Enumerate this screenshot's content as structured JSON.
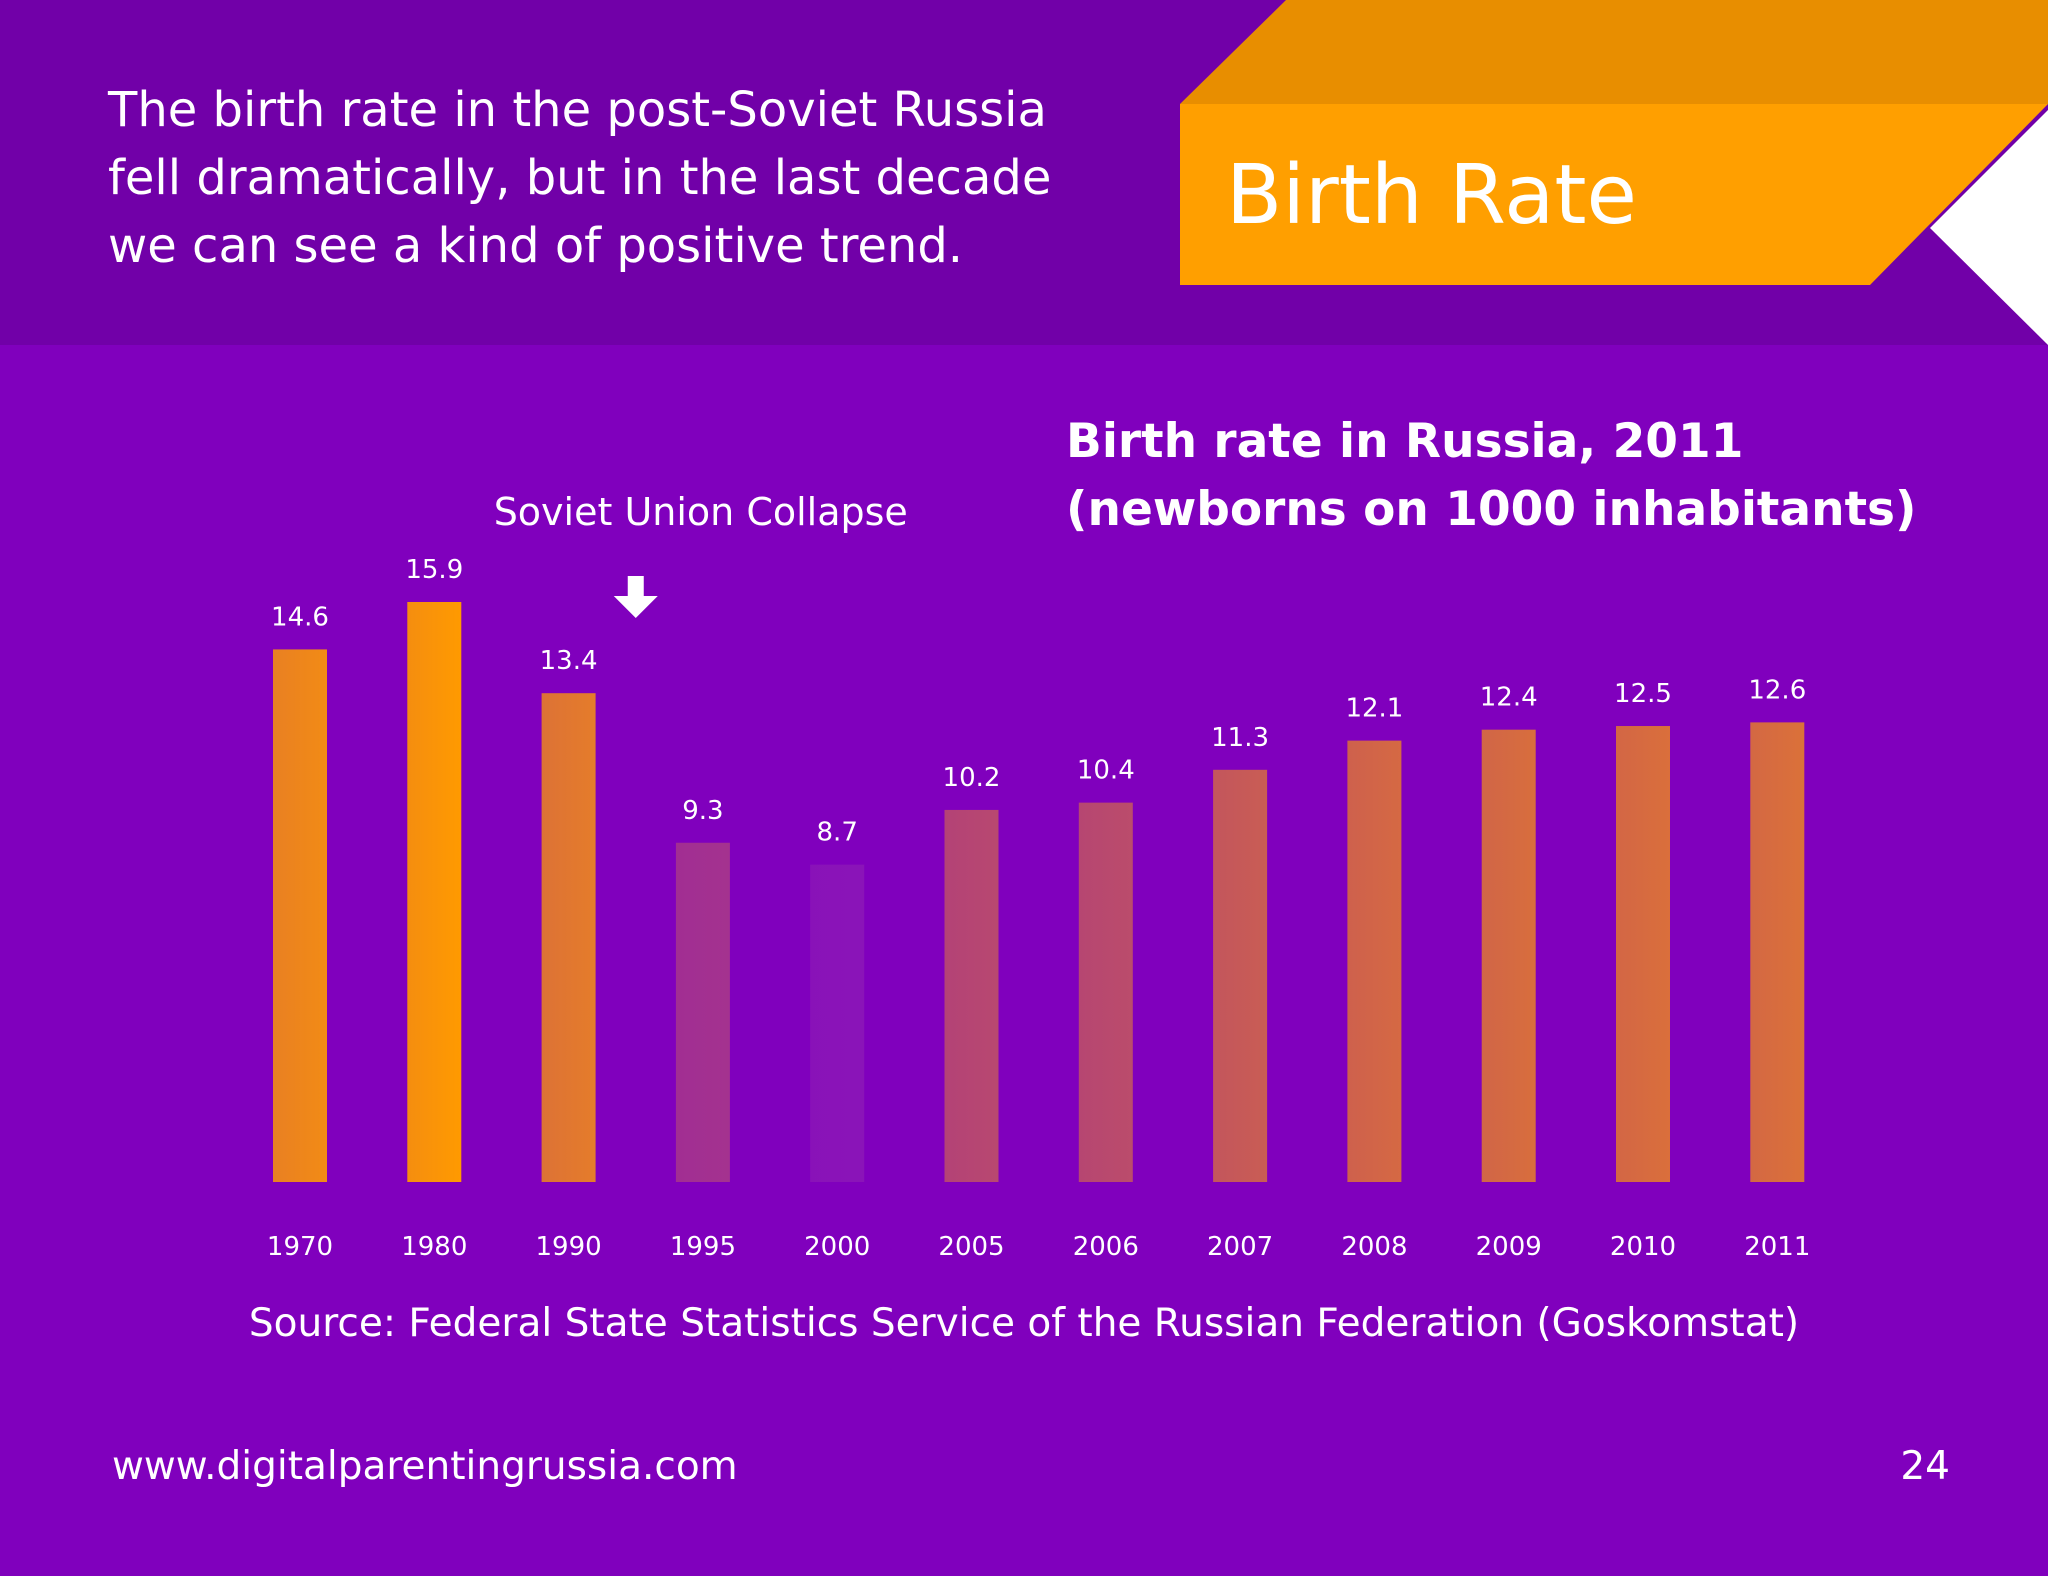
{
  "header": {
    "intro_text": "The birth rate in the post-Soviet Russia fell dramatically, but in the last decade we can see a kind of positive trend.",
    "banner_title": "Birth Rate"
  },
  "colors": {
    "background": "#8000bd",
    "header_background": "#7100a8",
    "banner": "#ff9f00",
    "banner_shade": "#e88e00",
    "bar_high": "#ff9a00",
    "bar_low": "#8a14b8"
  },
  "chart_data": {
    "type": "bar",
    "title": "Birth rate in Russia, 2011 (newborns on 1000 inhabitants)",
    "categories": [
      "1970",
      "1980",
      "1990",
      "1995",
      "2000",
      "2005",
      "2006",
      "2007",
      "2008",
      "2009",
      "2010",
      "2011"
    ],
    "values": [
      14.6,
      15.9,
      13.4,
      9.3,
      8.7,
      10.2,
      10.4,
      11.3,
      12.1,
      12.4,
      12.5,
      12.6
    ],
    "ylim": [
      0,
      15.9
    ],
    "grid": false,
    "annotation": {
      "text": "Soviet Union Collapse",
      "between": [
        "1990",
        "1995"
      ],
      "icon": "arrow-down-icon"
    }
  },
  "footer": {
    "source": "Source: Federal State Statistics Service of the Russian Federation (Goskomstat)",
    "url": "www.digitalparentingrussia.com",
    "page_number": "24"
  }
}
